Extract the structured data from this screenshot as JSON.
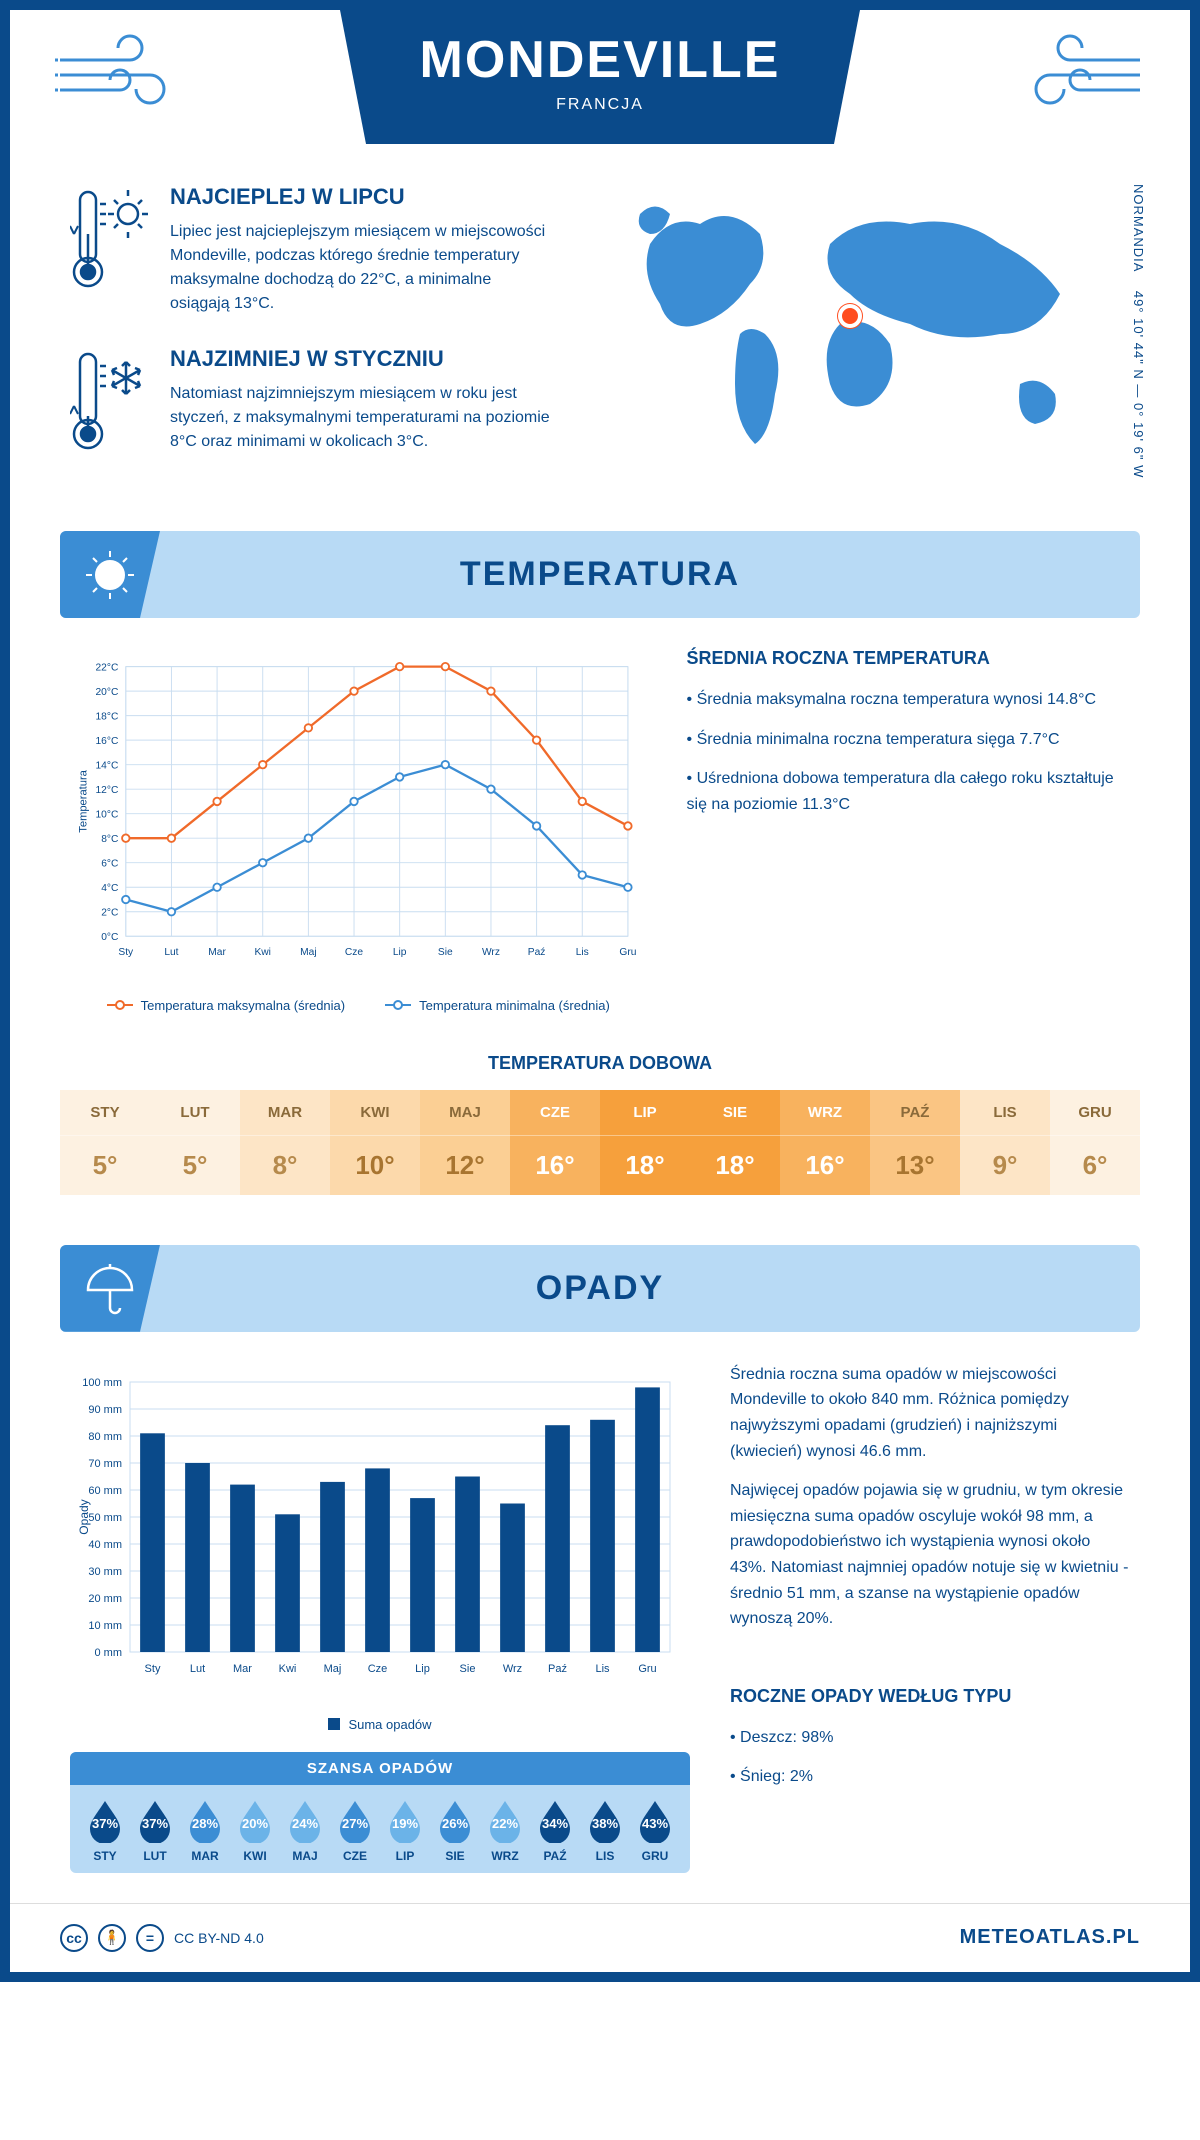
{
  "header": {
    "city": "MONDEVILLE",
    "country": "FRANCJA",
    "region": "NORMANDIA",
    "coords": "49° 10' 44\" N — 0° 19' 6\" W"
  },
  "hot": {
    "title": "NAJCIEPLEJ W LIPCU",
    "text": "Lipiec jest najcieplejszym miesiącem w miejscowości Mondeville, podczas którego średnie temperatury maksymalne dochodzą do 22°C, a minimalne osiągają 13°C."
  },
  "cold": {
    "title": "NAJZIMNIEJ W STYCZNIU",
    "text": "Natomiast najzimniejszym miesiącem w roku jest styczeń, z maksymalnymi temperaturami na poziomie 8°C oraz minimami w okolicach 3°C."
  },
  "temp_section": {
    "title": "TEMPERATURA"
  },
  "temp_chart": {
    "type": "line",
    "ylabel": "Temperatura",
    "ylim": [
      0,
      22
    ],
    "ytick_step": 2,
    "months": [
      "Sty",
      "Lut",
      "Mar",
      "Kwi",
      "Maj",
      "Cze",
      "Lip",
      "Sie",
      "Wrz",
      "Paź",
      "Lis",
      "Gru"
    ],
    "series": [
      {
        "name": "Temperatura maksymalna (średnia)",
        "color": "#f06a2a",
        "values": [
          8,
          8,
          11,
          14,
          17,
          20,
          22,
          22,
          20,
          16,
          11,
          9
        ]
      },
      {
        "name": "Temperatura minimalna (średnia)",
        "color": "#3b8dd4",
        "values": [
          3,
          2,
          4,
          6,
          8,
          11,
          13,
          14,
          12,
          9,
          5,
          4
        ]
      }
    ],
    "grid_color": "#c9ddf0",
    "background": "#ffffff"
  },
  "temp_side": {
    "title": "ŚREDNIA ROCZNA TEMPERATURA",
    "lines": [
      "• Średnia maksymalna roczna temperatura wynosi 14.8°C",
      "• Średnia minimalna roczna temperatura sięga 7.7°C",
      "• Uśredniona dobowa temperatura dla całego roku kształtuje się na poziomie 11.3°C"
    ]
  },
  "daily": {
    "title": "TEMPERATURA DOBOWA",
    "months": [
      "STY",
      "LUT",
      "MAR",
      "KWI",
      "MAJ",
      "CZE",
      "LIP",
      "SIE",
      "WRZ",
      "PAŹ",
      "LIS",
      "GRU"
    ],
    "values": [
      "5°",
      "5°",
      "8°",
      "10°",
      "12°",
      "16°",
      "18°",
      "18°",
      "16°",
      "13°",
      "9°",
      "6°"
    ],
    "cell_bg": [
      "#fdf1e1",
      "#fdf1e1",
      "#fde5c6",
      "#fcd9ab",
      "#fbcf94",
      "#f8b25e",
      "#f6a03c",
      "#f6a03c",
      "#f8b25e",
      "#fac583",
      "#fde5c6",
      "#fdf1e1"
    ],
    "cell_fg": [
      "#b68a4c",
      "#b68a4c",
      "#b68a4c",
      "#a87530",
      "#a87530",
      "#ffffff",
      "#ffffff",
      "#ffffff",
      "#ffffff",
      "#a87530",
      "#b68a4c",
      "#b68a4c"
    ]
  },
  "precip_section": {
    "title": "OPADY"
  },
  "precip_chart": {
    "type": "bar",
    "ylabel": "Opady",
    "ylim": [
      0,
      100
    ],
    "ytick_step": 10,
    "months": [
      "Sty",
      "Lut",
      "Mar",
      "Kwi",
      "Maj",
      "Cze",
      "Lip",
      "Sie",
      "Wrz",
      "Paź",
      "Lis",
      "Gru"
    ],
    "values": [
      81,
      70,
      62,
      51,
      63,
      68,
      57,
      65,
      55,
      84,
      86,
      98
    ],
    "bar_color": "#0a4a8a",
    "grid_color": "#c9ddf0",
    "legend": "Suma opadów"
  },
  "precip_side": {
    "p1": "Średnia roczna suma opadów w miejscowości Mondeville to około 840 mm. Różnica pomiędzy najwyższymi opadami (grudzień) i najniższymi (kwiecień) wynosi 46.6 mm.",
    "p2": "Najwięcej opadów pojawia się w grudniu, w tym okresie miesięczna suma opadów oscyluje wokół 98 mm, a prawdopodobieństwo ich wystąpienia wynosi około 43%. Natomiast najmniej opadów notuje się w kwietniu - średnio 51 mm, a szanse na wystąpienie opadów wynoszą 20%."
  },
  "chance": {
    "title": "SZANSA OPADÓW",
    "months": [
      "STY",
      "LUT",
      "MAR",
      "KWI",
      "MAJ",
      "CZE",
      "LIP",
      "SIE",
      "WRZ",
      "PAŹ",
      "LIS",
      "GRU"
    ],
    "values": [
      "37%",
      "37%",
      "28%",
      "20%",
      "24%",
      "27%",
      "19%",
      "26%",
      "22%",
      "34%",
      "38%",
      "43%"
    ],
    "drop_fill": [
      "#0a4a8a",
      "#0a4a8a",
      "#3b8dd4",
      "#6bb3e8",
      "#6bb3e8",
      "#3b8dd4",
      "#6bb3e8",
      "#3b8dd4",
      "#6bb3e8",
      "#0a4a8a",
      "#0a4a8a",
      "#0a4a8a"
    ]
  },
  "precip_type": {
    "title": "ROCZNE OPADY WEDŁUG TYPU",
    "lines": [
      "• Deszcz: 98%",
      "• Śnieg: 2%"
    ]
  },
  "footer": {
    "license": "CC BY-ND 4.0",
    "brand": "METEOATLAS.PL"
  }
}
